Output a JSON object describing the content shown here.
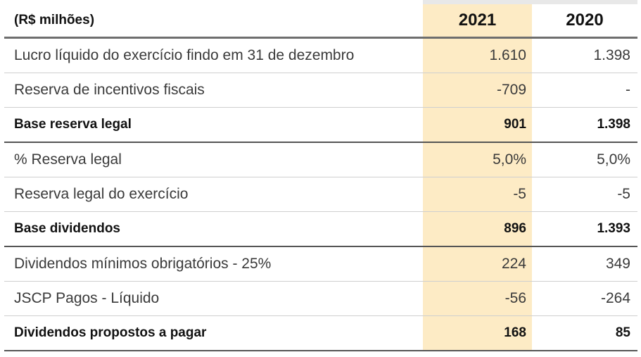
{
  "header": {
    "unit_label": "(R$ milhões)",
    "year_1": "2021",
    "year_2": "2020"
  },
  "rows": [
    {
      "label": "Lucro líquido do exercício findo em 31 de dezembro",
      "v2021": "1.610",
      "v2020": "1.398",
      "bold": false
    },
    {
      "label": "Reserva de incentivos fiscais",
      "v2021": "-709",
      "v2020": "-",
      "bold": false
    },
    {
      "label": "Base reserva legal",
      "v2021": "901",
      "v2020": "1.398",
      "bold": true
    },
    {
      "label": "% Reserva legal",
      "v2021": "5,0%",
      "v2020": "5,0%",
      "bold": false
    },
    {
      "label": "Reserva legal do exercício",
      "v2021": "-5",
      "v2020": "-5",
      "bold": false
    },
    {
      "label": "Base dividendos",
      "v2021": "896",
      "v2020": "1.393",
      "bold": true
    },
    {
      "label": "Dividendos mínimos obrigatórios - 25%",
      "v2021": "224",
      "v2020": "349",
      "bold": false
    },
    {
      "label": "JSCP Pagos - Líquido",
      "v2021": "-56",
      "v2020": "-264",
      "bold": false
    },
    {
      "label": "Dividendos propostos a pagar",
      "v2021": "168",
      "v2020": "85",
      "bold": true
    }
  ],
  "colors": {
    "highlight_column": "#fdebc5",
    "rule_dark": "#555555",
    "rule_light": "#cfcfcf"
  }
}
